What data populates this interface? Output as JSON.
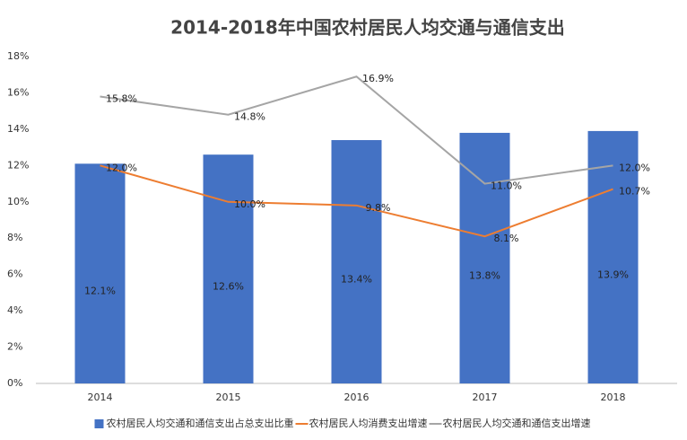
{
  "chart_data": {
    "type": "combo",
    "title": "2014-2018年中国农村居民人均交通与通信支出",
    "categories": [
      "2014",
      "2015",
      "2016",
      "2017",
      "2018"
    ],
    "series": [
      {
        "name": "农村居民人均交通和通信支出占总支出比重",
        "type": "bar",
        "color": "#4472c4",
        "values": [
          12.1,
          12.6,
          13.4,
          13.8,
          13.9
        ],
        "value_labels": [
          "12.1%",
          "12.6%",
          "13.4%",
          "13.8%",
          "13.9%"
        ]
      },
      {
        "name": "农村居民人均消费支出增速",
        "type": "line",
        "color": "#ed7d31",
        "values": [
          12.0,
          10.0,
          9.8,
          8.1,
          10.7
        ],
        "value_labels": [
          "12.0%",
          "10.0%",
          "9.8%",
          "8.1%",
          "10.7%"
        ]
      },
      {
        "name": "农村居民人均交通和通信支出增速",
        "type": "line",
        "color": "#a5a5a5",
        "values": [
          15.8,
          14.8,
          16.9,
          11.0,
          12.0
        ],
        "value_labels": [
          "15.8%",
          "14.8%",
          "16.9%",
          "11.0%",
          "12.0%"
        ]
      }
    ],
    "ylim": [
      0,
      18
    ],
    "yticks": [
      {
        "value": 0,
        "label": "0%"
      },
      {
        "value": 2,
        "label": "2%"
      },
      {
        "value": 4,
        "label": "4%"
      },
      {
        "value": 6,
        "label": "6%"
      },
      {
        "value": 8,
        "label": "8%"
      },
      {
        "value": 10,
        "label": "10%"
      },
      {
        "value": 12,
        "label": "12%"
      },
      {
        "value": 14,
        "label": "14%"
      },
      {
        "value": 16,
        "label": "16%"
      },
      {
        "value": 18,
        "label": "18%"
      }
    ],
    "grid": false,
    "legend": "bottom"
  }
}
